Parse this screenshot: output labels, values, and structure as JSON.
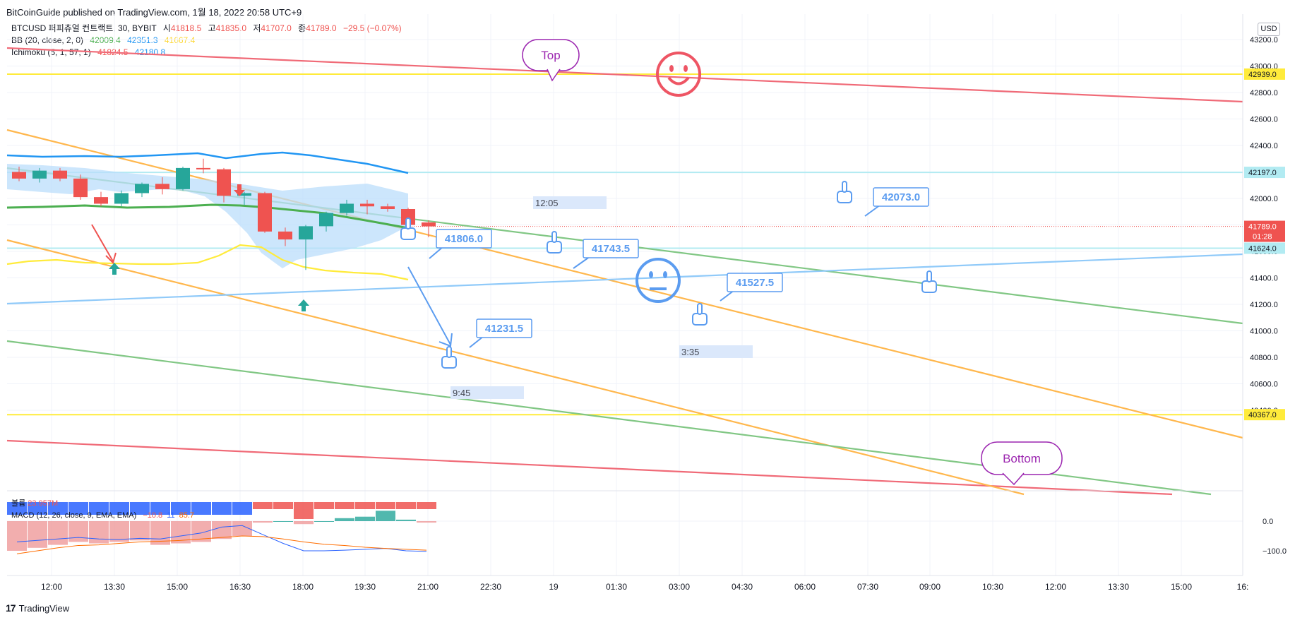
{
  "header": {
    "text": "BitCoinGuide published on TradingView.com, 1월 18, 2022 20:58 UTC+9"
  },
  "legend": {
    "symbol_line": "BTCUSD 퍼피츄얼 컨트랙트, 30, BYBIT",
    "ohlc": [
      {
        "label": "시",
        "value": "41818.5"
      },
      {
        "label": "고",
        "value": "41835.0"
      },
      {
        "label": "저",
        "value": "41707.0"
      },
      {
        "label": "종",
        "value": "41789.0"
      }
    ],
    "change": "−29.5 (−0.07%)",
    "bb_label": "BB (20, close, 2, 0)",
    "bb_values": [
      "42009.4",
      "42351.3",
      "41667.4"
    ],
    "ichimoku_label": "Ichimoku (5, 1, 57, 1)",
    "ichimoku_values": [
      "41824.5",
      "42180.8"
    ],
    "volume_label": "볼륨",
    "volume_value": "23.957M",
    "macd_label": "MACD (12, 26, close, 9, EMA, EMA)",
    "macd_values": [
      "−10.8",
      "11",
      "85.7"
    ]
  },
  "currency": "USD",
  "colors": {
    "up": "#26a69a",
    "down": "#ef5350",
    "bb_upper": "#2196f3",
    "bb_basis": "#4caf50",
    "bb_lower": "#ffeb3b",
    "cloud": "#bbdefb",
    "trend_red": "#f06a77",
    "trend_orange": "#ffb74d",
    "trend_green": "#81c784",
    "trend_blue": "#90caf9",
    "level_yellow": "#ffeb3b",
    "level_cyan": "#b2ebf2",
    "note_blue": "#5b9cf0",
    "callout_purple": "#9c27b0"
  },
  "chart_data": {
    "type": "candlestick",
    "ylim": [
      40300,
      43300
    ],
    "y_ticks": [
      "43200.0",
      "43000.0",
      "42800.0",
      "42600.0",
      "42400.0",
      "42200.0",
      "42000.0",
      "41800.0",
      "41600.0",
      "41400.0",
      "41200.0",
      "41000.0",
      "40800.0",
      "40600.0",
      "40400.0"
    ],
    "x_ticks": [
      "12:00",
      "13:30",
      "15:00",
      "16:30",
      "18:00",
      "19:30",
      "21:00",
      "22:30",
      "19",
      "01:30",
      "03:00",
      "04:30",
      "06:00",
      "07:30",
      "09:00",
      "10:30",
      "12:00",
      "13:30",
      "15:00",
      "16:"
    ],
    "price_labels": [
      {
        "text": "43200.0",
        "value": 43200
      },
      {
        "text": "42939.0",
        "value": 42939,
        "kind": "yellow"
      },
      {
        "text": "42197.0",
        "value": 42197,
        "kind": "cyan"
      },
      {
        "text": "41789.0",
        "value": 41789,
        "kind": "last",
        "sub": "01:28"
      },
      {
        "text": "41624.0",
        "value": 41624,
        "kind": "cyan"
      },
      {
        "text": "40367.0",
        "value": 40367,
        "kind": "yellow"
      }
    ],
    "candles": [
      {
        "o": 42200,
        "h": 42240,
        "l": 42130,
        "c": 42150
      },
      {
        "o": 42150,
        "h": 42230,
        "l": 42120,
        "c": 42210
      },
      {
        "o": 42210,
        "h": 42230,
        "l": 42130,
        "c": 42150
      },
      {
        "o": 42150,
        "h": 42180,
        "l": 41990,
        "c": 42010
      },
      {
        "o": 42010,
        "h": 42050,
        "l": 41940,
        "c": 41960
      },
      {
        "o": 41960,
        "h": 42060,
        "l": 41940,
        "c": 42040
      },
      {
        "o": 42040,
        "h": 42120,
        "l": 42010,
        "c": 42110
      },
      {
        "o": 42110,
        "h": 42160,
        "l": 42030,
        "c": 42070
      },
      {
        "o": 42070,
        "h": 42240,
        "l": 42060,
        "c": 42230
      },
      {
        "o": 42230,
        "h": 42300,
        "l": 42190,
        "c": 42220
      },
      {
        "o": 42220,
        "h": 42230,
        "l": 41970,
        "c": 42020
      },
      {
        "o": 42020,
        "h": 42050,
        "l": 41950,
        "c": 42040
      },
      {
        "o": 42040,
        "h": 42050,
        "l": 41740,
        "c": 41750
      },
      {
        "o": 41750,
        "h": 41780,
        "l": 41640,
        "c": 41690
      },
      {
        "o": 41690,
        "h": 41800,
        "l": 41460,
        "c": 41790
      },
      {
        "o": 41790,
        "h": 41900,
        "l": 41750,
        "c": 41890
      },
      {
        "o": 41890,
        "h": 41990,
        "l": 41870,
        "c": 41960
      },
      {
        "o": 41960,
        "h": 41990,
        "l": 41880,
        "c": 41940
      },
      {
        "o": 41940,
        "h": 41960,
        "l": 41900,
        "c": 41920
      },
      {
        "o": 41920,
        "h": 41930,
        "l": 41770,
        "c": 41800
      },
      {
        "o": 41818.5,
        "h": 41835,
        "l": 41707,
        "c": 41789
      }
    ],
    "macd": {
      "hist": [
        -100,
        -90,
        -80,
        -70,
        -75,
        -70,
        -65,
        -80,
        -75,
        -70,
        -60,
        -50,
        -5,
        0,
        -10,
        0,
        10,
        15,
        35,
        5,
        -5
      ],
      "macd_line": [
        -70,
        -65,
        -60,
        -55,
        -60,
        -62,
        -58,
        -60,
        -50,
        -40,
        -20,
        -15,
        -45,
        -75,
        -100,
        -100,
        -98,
        -95,
        -92,
        -100,
        -102
      ],
      "signal_line": [
        -110,
        -100,
        -90,
        -82,
        -80,
        -75,
        -70,
        -68,
        -65,
        -60,
        -55,
        -50,
        -52,
        -60,
        -70,
        -78,
        -82,
        -88,
        -92,
        -95,
        -98
      ]
    },
    "annotations": {
      "price_notes": [
        "41806.0",
        "41743.5",
        "42073.0",
        "41527.5",
        "41231.5"
      ],
      "time_notes": [
        "12:05",
        "3:35",
        "9:45"
      ],
      "callouts": [
        "Top",
        "Bottom"
      ]
    }
  },
  "footer": {
    "brand": "TradingView"
  }
}
